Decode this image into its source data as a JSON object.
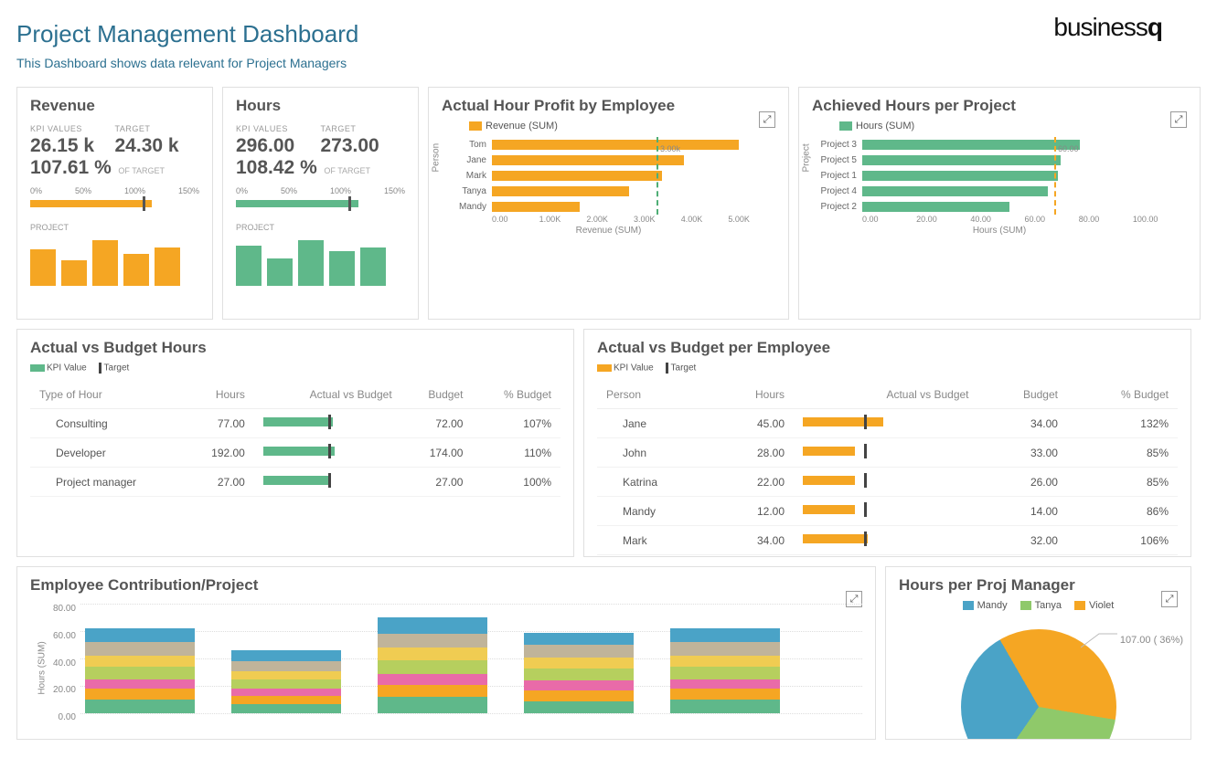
{
  "header": {
    "title": "Project Management Dashboard",
    "subtitle": "This Dashboard shows data relevant for Project Managers",
    "logo_thin": "business",
    "logo_bold": "q"
  },
  "colors": {
    "orange": "#f5a623",
    "green": "#5fb88a",
    "teal": "#2c7090",
    "grid": "#e0e0e0",
    "text": "#555555"
  },
  "kpi_revenue": {
    "title": "Revenue",
    "kpi_label": "KPI VALUES",
    "target_label": "TARGET",
    "value": "26.15 k",
    "target": "24.30 k",
    "pct": "107.61 %",
    "of_target": "OF TARGET",
    "gauge": {
      "ticks": [
        "0%",
        "50%",
        "100%",
        "150%"
      ],
      "fill_pct": 71.7,
      "mark_pct": 66.7,
      "color": "#f5a623"
    },
    "section_label": "PROJECT",
    "mini": {
      "values": [
        40,
        28,
        50,
        35,
        42
      ],
      "max": 55,
      "color": "#f5a623"
    }
  },
  "kpi_hours": {
    "title": "Hours",
    "kpi_label": "KPI VALUES",
    "target_label": "TARGET",
    "value": "296.00",
    "target": "273.00",
    "pct": "108.42 %",
    "of_target": "OF TARGET",
    "gauge": {
      "ticks": [
        "0%",
        "50%",
        "100%",
        "150%"
      ],
      "fill_pct": 72.3,
      "mark_pct": 66.7,
      "color": "#5fb88a"
    },
    "section_label": "PROJECT",
    "mini": {
      "values": [
        44,
        30,
        50,
        38,
        42
      ],
      "max": 55,
      "color": "#5fb88a"
    }
  },
  "profit_by_employee": {
    "title": "Actual Hour Profit by Employee",
    "legend": "Revenue (SUM)",
    "y_label": "Person",
    "x_label": "Revenue (SUM)",
    "x_ticks": [
      "0.00",
      "1.00K",
      "2.00K",
      "3.00K",
      "4.00K",
      "5.00K"
    ],
    "x_max": 5000,
    "reference_label": "3.00k",
    "reference_value": 3000,
    "color": "#f5a623",
    "ref_color": "#4fae76",
    "rows": [
      {
        "label": "Tom",
        "value": 4500
      },
      {
        "label": "Jane",
        "value": 3500
      },
      {
        "label": "Mark",
        "value": 3100
      },
      {
        "label": "Tanya",
        "value": 2500
      },
      {
        "label": "Mandy",
        "value": 1600
      }
    ]
  },
  "achieved_hours": {
    "title": "Achieved Hours per Project",
    "legend": "Hours (SUM)",
    "y_label": "Project",
    "x_label": "Hours (SUM)",
    "x_ticks": [
      "0.00",
      "20.00",
      "40.00",
      "60.00",
      "80.00",
      "100.00"
    ],
    "x_max": 100,
    "reference_label": "60.00",
    "reference_value": 60,
    "color": "#5fb88a",
    "ref_color": "#f5a623",
    "rows": [
      {
        "label": "Project 3",
        "value": 68
      },
      {
        "label": "Project 5",
        "value": 62
      },
      {
        "label": "Project 1",
        "value": 61
      },
      {
        "label": "Project 4",
        "value": 58
      },
      {
        "label": "Project 2",
        "value": 46
      }
    ]
  },
  "avb_hours": {
    "title": "Actual vs Budget Hours",
    "legend_kpi": "KPI Value",
    "legend_target": "Target",
    "columns": [
      "Type of Hour",
      "Hours",
      "Actual vs Budget",
      "Budget",
      "% Budget"
    ],
    "color": "#5fb88a",
    "bullet_max": 140,
    "rows": [
      {
        "type": "Consulting",
        "hours": "77.00",
        "pct_num": 107,
        "budget": "72.00",
        "pct": "107%"
      },
      {
        "type": "Developer",
        "hours": "192.00",
        "pct_num": 110,
        "budget": "174.00",
        "pct": "110%"
      },
      {
        "type": "Project manager",
        "hours": "27.00",
        "pct_num": 100,
        "budget": "27.00",
        "pct": "100%"
      }
    ]
  },
  "avb_employee": {
    "title": "Actual vs Budget per Employee",
    "legend_kpi": "KPI Value",
    "legend_target": "Target",
    "columns": [
      "Person",
      "Hours",
      "Actual vs Budget",
      "Budget",
      "% Budget"
    ],
    "color": "#f5a623",
    "bullet_max": 150,
    "rows": [
      {
        "type": "Jane",
        "hours": "45.00",
        "pct_num": 132,
        "budget": "34.00",
        "pct": "132%"
      },
      {
        "type": "John",
        "hours": "28.00",
        "pct_num": 85,
        "budget": "33.00",
        "pct": "85%"
      },
      {
        "type": "Katrina",
        "hours": "22.00",
        "pct_num": 85,
        "budget": "26.00",
        "pct": "85%"
      },
      {
        "type": "Mandy",
        "hours": "12.00",
        "pct_num": 86,
        "budget": "14.00",
        "pct": "86%"
      },
      {
        "type": "Mark",
        "hours": "34.00",
        "pct_num": 106,
        "budget": "32.00",
        "pct": "106%"
      }
    ]
  },
  "contribution": {
    "title": "Employee Contribution/Project",
    "y_label": "Hours (SUM)",
    "y_ticks": [
      "80.00",
      "60.00",
      "40.00",
      "20.00",
      "0.00"
    ],
    "y_max": 80,
    "seg_colors": [
      "#5fb88a",
      "#f5a623",
      "#e96ba8",
      "#b6cf5e",
      "#f0cc52",
      "#c0b49a",
      "#4aa3c7"
    ],
    "bars": [
      {
        "segments": [
          10,
          8,
          7,
          9,
          8,
          10,
          10
        ]
      },
      {
        "segments": [
          7,
          6,
          5,
          7,
          6,
          7,
          8
        ]
      },
      {
        "segments": [
          12,
          9,
          8,
          10,
          9,
          10,
          12
        ]
      },
      {
        "segments": [
          9,
          8,
          7,
          9,
          8,
          9,
          9
        ]
      },
      {
        "segments": [
          10,
          8,
          7,
          9,
          8,
          10,
          10
        ]
      }
    ]
  },
  "hours_per_pm": {
    "title": "Hours per Proj Manager",
    "legend": [
      {
        "label": "Mandy",
        "color": "#4aa3c7"
      },
      {
        "label": "Tanya",
        "color": "#8fc96a"
      },
      {
        "label": "Violet",
        "color": "#f5a623"
      }
    ],
    "callout": "107.00 ( 36%)",
    "slices": [
      {
        "color": "#f5a623",
        "value": 36
      },
      {
        "color": "#8fc96a",
        "value": 32
      },
      {
        "color": "#4aa3c7",
        "value": 32
      }
    ]
  }
}
